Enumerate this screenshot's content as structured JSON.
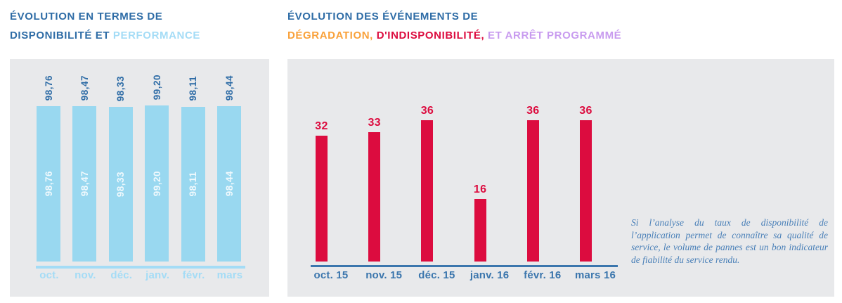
{
  "left_section": {
    "title": {
      "line1": "ÉVOLUTION EN TERMES DE",
      "line2_dark": "DISPONIBILITÉ ET",
      "line2_light": "PERFORMANCE"
    }
  },
  "right_section": {
    "title": {
      "line1": "ÉVOLUTION DES ÉVÉNEMENTS DE",
      "seg_orange": "DÉGRADATION,",
      "seg_red": "D'INDISPONIBILITÉ,",
      "seg_purple": "ET ARRÊT PROGRAMMÉ"
    },
    "annotation": "Si l’analyse du taux de disponibilité de l’application permet de connaître sa qualité de service, le volume de pannes est un bon indicateur de fiabilité du service rendu."
  },
  "chart_data": [
    {
      "type": "bar",
      "title": "ÉVOLUTION EN TERMES DE DISPONIBILITÉ ET PERFORMANCE",
      "categories": [
        "oct.",
        "nov.",
        "déc.",
        "janv.",
        "févr.",
        "mars"
      ],
      "values": [
        98.76,
        98.47,
        98.33,
        99.2,
        98.11,
        98.44
      ],
      "value_labels": [
        "98,76",
        "98,47",
        "98,33",
        "99,20",
        "98,11",
        "98,44"
      ],
      "value_label_style": "rotated 90° CCW, shown above bar and in white inside bar",
      "xlabel": "",
      "ylabel": "",
      "ylim": [
        0,
        100
      ],
      "grid": false,
      "legend": "none",
      "bar_color": "#99d8f0",
      "value_label_color": "#2e6ca6",
      "tick_label_color": "#a4dcf6",
      "axis_color": "#a4dcf6"
    },
    {
      "type": "bar",
      "title": "ÉVOLUTION DES ÉVÉNEMENTS DE DÉGRADATION, D'INDISPONIBILITÉ, ET ARRÊT PROGRAMMÉ",
      "categories": [
        "oct. 15",
        "nov. 15",
        "déc. 15",
        "janv. 16",
        "févr. 16",
        "mars 16"
      ],
      "values": [
        32,
        33,
        36,
        16,
        36,
        36
      ],
      "value_labels": [
        "32",
        "33",
        "36",
        "16",
        "36",
        "36"
      ],
      "value_label_style": "horizontal, above bar",
      "xlabel": "",
      "ylabel": "",
      "ylim": [
        0,
        40
      ],
      "grid": false,
      "legend": "none",
      "bar_color": "#dc0c3f",
      "value_label_color": "#dc0c3f",
      "tick_label_color": "#3b76ad",
      "axis_color": "#3b76ad"
    }
  ],
  "colors": {
    "panel_background": "#e8e9eb",
    "title_blue": "#2e6ca6",
    "light_blue": "#a4dcf6",
    "orange": "#f9a13a",
    "red": "#dc0c3f",
    "purple": "#c89bef",
    "steel_blue": "#3b76ad",
    "annotation_blue": "#4a80b8"
  }
}
